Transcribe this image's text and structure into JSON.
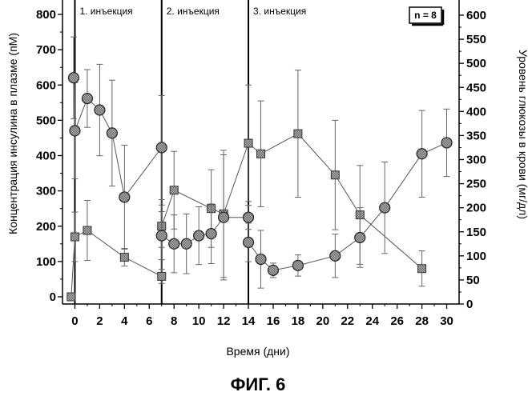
{
  "figure": {
    "caption": "ФИГ. 6",
    "n_label": "n = 8"
  },
  "chart_data": {
    "type": "scatter",
    "xlabel": "Время (дни)",
    "ylabel_left": "Концентрация инсулина в плазме (пМ)",
    "ylabel_right": "Уровень глюкозы в крови (мг/дл)",
    "xlim": [
      -1,
      31
    ],
    "ylim_left": [
      -20,
      800
    ],
    "ylim_right": [
      -15,
      600
    ],
    "x_ticks": [
      0,
      2,
      4,
      6,
      8,
      10,
      12,
      14,
      16,
      18,
      20,
      22,
      24,
      26,
      28,
      30
    ],
    "y_left_ticks": [
      0,
      100,
      200,
      300,
      400,
      500,
      600,
      700,
      800
    ],
    "y_right_ticks": [
      0,
      50,
      100,
      150,
      200,
      250,
      300,
      350,
      400,
      450,
      500,
      550,
      600
    ],
    "grid": false,
    "injections": [
      {
        "x": 0,
        "label": "1. инъекция"
      },
      {
        "x": 7,
        "label": "2. инъекция"
      },
      {
        "x": 14,
        "label": "3. инъекция"
      }
    ],
    "series": [
      {
        "axis": "left",
        "marker": "square",
        "points": [
          {
            "x": -0.3,
            "y": 0,
            "err": 0
          },
          {
            "x": 0,
            "y": 170,
            "err": 70
          },
          {
            "x": 1,
            "y": 188,
            "err": 85
          },
          {
            "x": 4,
            "y": 112,
            "err": 25
          },
          {
            "x": 7,
            "y": 58,
            "err": 20
          },
          {
            "x": 7,
            "y": 200,
            "err": 60
          },
          {
            "x": 8,
            "y": 302,
            "err": 110
          },
          {
            "x": 11,
            "y": 250,
            "err": 110
          },
          {
            "x": 12,
            "y": 235,
            "err": 180
          },
          {
            "x": 14,
            "y": 435,
            "err": 165
          },
          {
            "x": 15,
            "y": 405,
            "err": 150
          },
          {
            "x": 18,
            "y": 462,
            "err": 180
          },
          {
            "x": 21,
            "y": 345,
            "err": 155
          },
          {
            "x": 23,
            "y": 232,
            "err": 140
          },
          {
            "x": 28,
            "y": 80,
            "err": 50
          }
        ]
      },
      {
        "axis": "right",
        "marker": "circle",
        "points": [
          {
            "x": -0.1,
            "y": 470,
            "err": 85
          },
          {
            "x": 0,
            "y": 360,
            "err": 100
          },
          {
            "x": 1,
            "y": 427,
            "err": 60
          },
          {
            "x": 2,
            "y": 403,
            "err": 95
          },
          {
            "x": 3,
            "y": 355,
            "err": 110
          },
          {
            "x": 4,
            "y": 222,
            "err": 108
          },
          {
            "x": 7,
            "y": 325,
            "err": 108
          },
          {
            "x": 7,
            "y": 142,
            "err": 50
          },
          {
            "x": 8,
            "y": 125,
            "err": 60
          },
          {
            "x": 9,
            "y": 125,
            "err": 62
          },
          {
            "x": 10,
            "y": 142,
            "err": 60
          },
          {
            "x": 11,
            "y": 146,
            "err": 62
          },
          {
            "x": 12,
            "y": 180,
            "err": 130
          },
          {
            "x": 14,
            "y": 180,
            "err": 25
          },
          {
            "x": 14,
            "y": 128,
            "err": 40
          },
          {
            "x": 15,
            "y": 93,
            "err": 60
          },
          {
            "x": 16,
            "y": 70,
            "err": 15
          },
          {
            "x": 18,
            "y": 80,
            "err": 22
          },
          {
            "x": 21,
            "y": 100,
            "err": 45
          },
          {
            "x": 23,
            "y": 138,
            "err": 62
          },
          {
            "x": 25,
            "y": 200,
            "err": 95
          },
          {
            "x": 28,
            "y": 312,
            "err": 90
          },
          {
            "x": 30,
            "y": 335,
            "err": 70
          }
        ]
      }
    ]
  }
}
